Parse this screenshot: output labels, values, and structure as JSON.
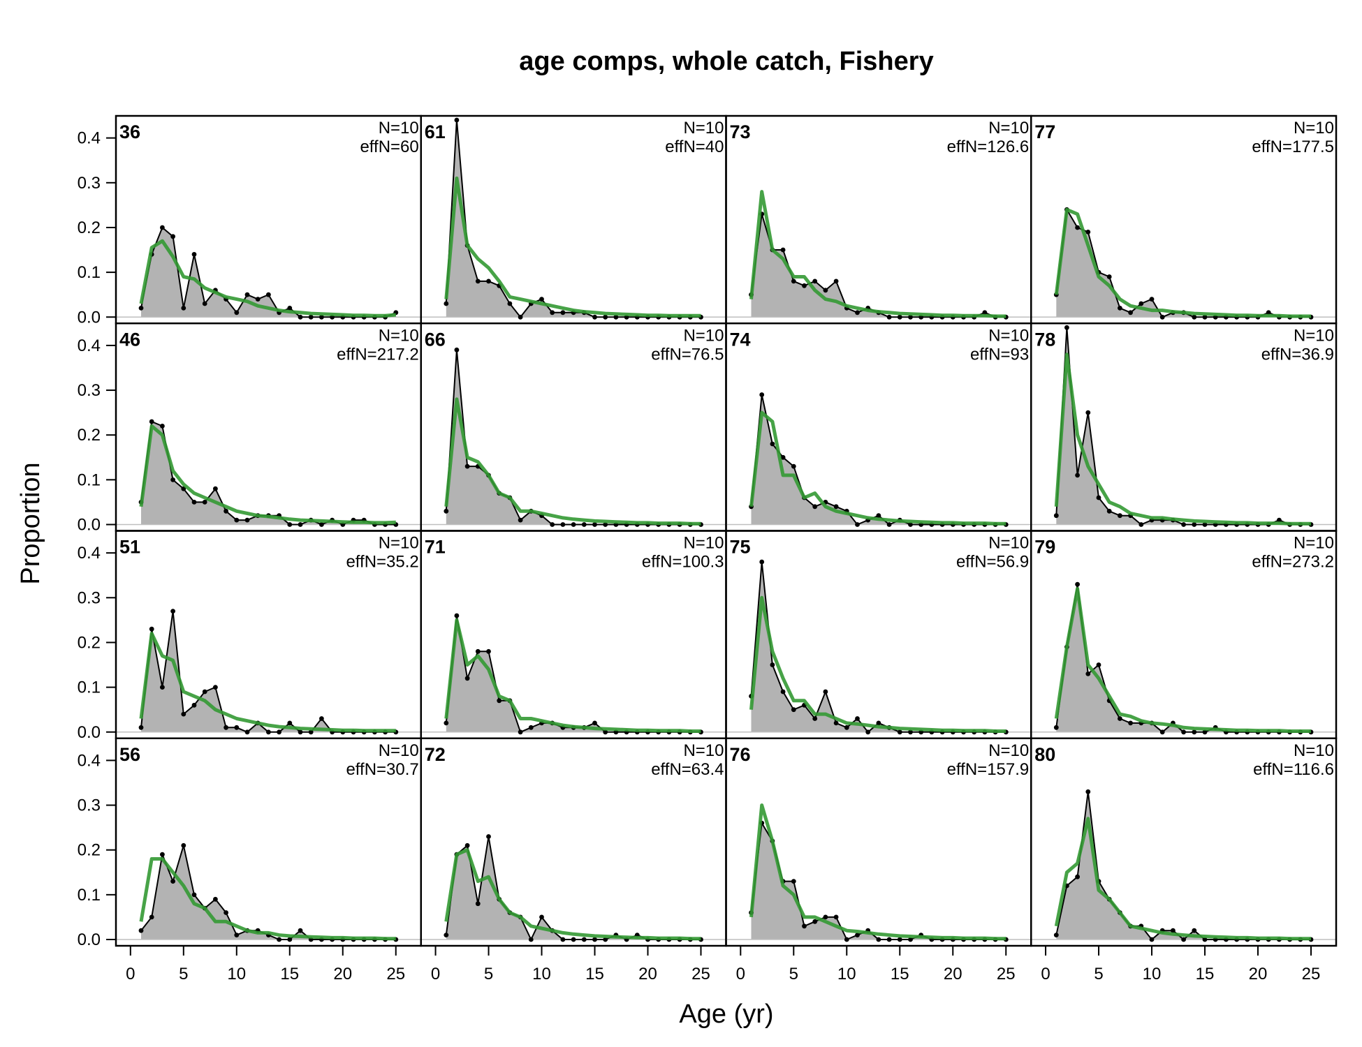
{
  "chart_data": {
    "type": "area",
    "title": "age comps, whole catch, Fishery",
    "xlabel": "Age (yr)",
    "ylabel": "Proportion",
    "xlim": [
      1,
      25
    ],
    "ylim": [
      0,
      0.44
    ],
    "xticks": [
      "0",
      "5",
      "10",
      "15",
      "20",
      "25"
    ],
    "yticks": [
      "0.0",
      "0.1",
      "0.2",
      "0.3",
      "0.4"
    ],
    "layout": "4x4 grid, column-major",
    "ages": [
      1,
      2,
      3,
      4,
      5,
      6,
      7,
      8,
      9,
      10,
      11,
      12,
      13,
      14,
      15,
      16,
      17,
      18,
      19,
      20,
      21,
      22,
      23,
      24,
      25
    ],
    "series_names": {
      "observed": "observed (grey area, black points)",
      "expected": "expected (green line)"
    },
    "panels": [
      {
        "label": "36",
        "n_text": "N=10",
        "effn_text": "effN=60",
        "observed": [
          0.02,
          0.14,
          0.2,
          0.18,
          0.02,
          0.14,
          0.03,
          0.06,
          0.04,
          0.01,
          0.05,
          0.04,
          0.05,
          0.01,
          0.02,
          0,
          0,
          0,
          0,
          0,
          0,
          0,
          0,
          0,
          0.01
        ],
        "expected": [
          0.03,
          0.155,
          0.17,
          0.135,
          0.09,
          0.085,
          0.065,
          0.055,
          0.045,
          0.04,
          0.035,
          0.025,
          0.02,
          0.015,
          0.012,
          0.01,
          0.008,
          0.007,
          0.006,
          0.005,
          0.004,
          0.004,
          0.003,
          0.003,
          0.005
        ]
      },
      {
        "label": "46",
        "n_text": "N=10",
        "effn_text": "effN=217.2",
        "observed": [
          0.05,
          0.23,
          0.22,
          0.1,
          0.08,
          0.05,
          0.05,
          0.08,
          0.03,
          0.01,
          0.01,
          0.02,
          0.02,
          0.02,
          0,
          0,
          0.01,
          0,
          0.01,
          0,
          0.01,
          0.01,
          0,
          0,
          0
        ],
        "expected": [
          0.04,
          0.22,
          0.2,
          0.12,
          0.09,
          0.07,
          0.06,
          0.05,
          0.04,
          0.03,
          0.025,
          0.02,
          0.018,
          0.015,
          0.012,
          0.01,
          0.009,
          0.008,
          0.007,
          0.006,
          0.005,
          0.005,
          0.004,
          0.004,
          0.005
        ]
      },
      {
        "label": "51",
        "n_text": "N=10",
        "effn_text": "effN=35.2",
        "observed": [
          0.01,
          0.23,
          0.1,
          0.27,
          0.04,
          0.06,
          0.09,
          0.1,
          0.01,
          0.01,
          0,
          0.02,
          0,
          0,
          0.02,
          0,
          0,
          0.03,
          0,
          0,
          0,
          0,
          0,
          0,
          0
        ],
        "expected": [
          0.03,
          0.22,
          0.17,
          0.16,
          0.09,
          0.08,
          0.07,
          0.05,
          0.04,
          0.03,
          0.025,
          0.02,
          0.015,
          0.012,
          0.01,
          0.008,
          0.007,
          0.006,
          0.005,
          0.004,
          0.004,
          0.003,
          0.003,
          0.003,
          0.003
        ]
      },
      {
        "label": "56",
        "n_text": "N=10",
        "effn_text": "effN=30.7",
        "observed": [
          0.02,
          0.05,
          0.19,
          0.13,
          0.21,
          0.1,
          0.07,
          0.09,
          0.06,
          0.01,
          0.02,
          0.02,
          0.01,
          0,
          0,
          0.02,
          0,
          0,
          0,
          0,
          0,
          0,
          0,
          0,
          0
        ],
        "expected": [
          0.04,
          0.18,
          0.18,
          0.15,
          0.12,
          0.08,
          0.07,
          0.04,
          0.04,
          0.03,
          0.02,
          0.015,
          0.015,
          0.01,
          0.008,
          0.007,
          0.006,
          0.005,
          0.004,
          0.004,
          0.003,
          0.003,
          0.003,
          0.002,
          0.002
        ]
      },
      {
        "label": "61",
        "n_text": "N=10",
        "effn_text": "effN=40",
        "observed": [
          0.03,
          0.44,
          0.16,
          0.08,
          0.08,
          0.07,
          0.03,
          0,
          0.03,
          0.04,
          0.01,
          0.01,
          0.01,
          0.01,
          0,
          0,
          0,
          0,
          0,
          0,
          0,
          0,
          0,
          0,
          0
        ],
        "expected": [
          0.04,
          0.31,
          0.16,
          0.13,
          0.11,
          0.08,
          0.045,
          0.04,
          0.035,
          0.03,
          0.025,
          0.02,
          0.015,
          0.012,
          0.01,
          0.008,
          0.007,
          0.006,
          0.005,
          0.004,
          0.004,
          0.003,
          0.003,
          0.003,
          0.003
        ]
      },
      {
        "label": "66",
        "n_text": "N=10",
        "effn_text": "effN=76.5",
        "observed": [
          0.03,
          0.39,
          0.13,
          0.13,
          0.11,
          0.07,
          0.06,
          0.01,
          0.03,
          0.02,
          0,
          0,
          0,
          0,
          0,
          0,
          0,
          0,
          0,
          0,
          0,
          0,
          0,
          0,
          0
        ],
        "expected": [
          0.04,
          0.28,
          0.15,
          0.14,
          0.11,
          0.07,
          0.06,
          0.03,
          0.03,
          0.025,
          0.02,
          0.015,
          0.012,
          0.01,
          0.008,
          0.007,
          0.006,
          0.005,
          0.004,
          0.004,
          0.003,
          0.003,
          0.003,
          0.002,
          0.002
        ]
      },
      {
        "label": "71",
        "n_text": "N=10",
        "effn_text": "effN=100.3",
        "observed": [
          0.02,
          0.26,
          0.12,
          0.18,
          0.18,
          0.07,
          0.07,
          0,
          0.01,
          0.02,
          0.02,
          0.01,
          0.01,
          0.01,
          0.02,
          0,
          0,
          0,
          0,
          0,
          0,
          0,
          0,
          0,
          0
        ],
        "expected": [
          0.03,
          0.25,
          0.15,
          0.17,
          0.14,
          0.08,
          0.07,
          0.03,
          0.03,
          0.025,
          0.02,
          0.015,
          0.012,
          0.01,
          0.008,
          0.007,
          0.006,
          0.005,
          0.004,
          0.004,
          0.003,
          0.003,
          0.003,
          0.002,
          0.002
        ]
      },
      {
        "label": "72",
        "n_text": "N=10",
        "effn_text": "effN=63.4",
        "observed": [
          0.01,
          0.19,
          0.21,
          0.08,
          0.23,
          0.09,
          0.06,
          0.05,
          0,
          0.05,
          0.02,
          0,
          0,
          0,
          0,
          0,
          0.01,
          0,
          0.01,
          0,
          0,
          0,
          0,
          0,
          0
        ],
        "expected": [
          0.04,
          0.19,
          0.2,
          0.13,
          0.14,
          0.09,
          0.06,
          0.05,
          0.03,
          0.025,
          0.02,
          0.015,
          0.012,
          0.01,
          0.008,
          0.007,
          0.006,
          0.005,
          0.004,
          0.004,
          0.003,
          0.003,
          0.003,
          0.002,
          0.002
        ]
      },
      {
        "label": "73",
        "n_text": "N=10",
        "effn_text": "effN=126.6",
        "observed": [
          0.05,
          0.23,
          0.15,
          0.15,
          0.08,
          0.07,
          0.08,
          0.06,
          0.08,
          0.02,
          0.01,
          0.02,
          0.01,
          0,
          0,
          0,
          0,
          0,
          0,
          0,
          0,
          0,
          0.01,
          0,
          0
        ],
        "expected": [
          0.04,
          0.28,
          0.15,
          0.13,
          0.09,
          0.09,
          0.06,
          0.04,
          0.035,
          0.025,
          0.02,
          0.015,
          0.012,
          0.01,
          0.008,
          0.007,
          0.006,
          0.005,
          0.004,
          0.004,
          0.003,
          0.003,
          0.003,
          0.002,
          0.002
        ]
      },
      {
        "label": "74",
        "n_text": "N=10",
        "effn_text": "effN=93",
        "observed": [
          0.04,
          0.29,
          0.18,
          0.15,
          0.13,
          0.06,
          0.04,
          0.05,
          0.04,
          0.03,
          0,
          0.01,
          0.02,
          0,
          0.01,
          0,
          0,
          0,
          0,
          0,
          0,
          0,
          0,
          0,
          0
        ],
        "expected": [
          0.04,
          0.25,
          0.23,
          0.11,
          0.11,
          0.06,
          0.07,
          0.04,
          0.03,
          0.025,
          0.02,
          0.015,
          0.012,
          0.01,
          0.008,
          0.007,
          0.006,
          0.005,
          0.004,
          0.004,
          0.003,
          0.003,
          0.003,
          0.002,
          0.002
        ]
      },
      {
        "label": "75",
        "n_text": "N=10",
        "effn_text": "effN=56.9",
        "observed": [
          0.08,
          0.38,
          0.15,
          0.09,
          0.05,
          0.06,
          0.03,
          0.09,
          0.02,
          0.01,
          0.03,
          0,
          0.02,
          0.01,
          0,
          0,
          0,
          0,
          0,
          0,
          0,
          0,
          0,
          0,
          0
        ],
        "expected": [
          0.05,
          0.3,
          0.18,
          0.12,
          0.07,
          0.07,
          0.04,
          0.04,
          0.03,
          0.02,
          0.018,
          0.015,
          0.012,
          0.01,
          0.008,
          0.007,
          0.006,
          0.005,
          0.004,
          0.004,
          0.003,
          0.003,
          0.003,
          0.002,
          0.002
        ]
      },
      {
        "label": "76",
        "n_text": "N=10",
        "effn_text": "effN=157.9",
        "observed": [
          0.06,
          0.26,
          0.22,
          0.13,
          0.13,
          0.03,
          0.04,
          0.05,
          0.05,
          0,
          0.01,
          0.02,
          0,
          0,
          0,
          0,
          0.01,
          0,
          0,
          0,
          0,
          0,
          0,
          0,
          0
        ],
        "expected": [
          0.05,
          0.3,
          0.22,
          0.12,
          0.1,
          0.05,
          0.05,
          0.04,
          0.03,
          0.02,
          0.018,
          0.015,
          0.012,
          0.01,
          0.008,
          0.007,
          0.006,
          0.005,
          0.004,
          0.004,
          0.003,
          0.003,
          0.003,
          0.002,
          0.002
        ]
      },
      {
        "label": "77",
        "n_text": "N=10",
        "effn_text": "effN=177.5",
        "observed": [
          0.05,
          0.24,
          0.2,
          0.19,
          0.1,
          0.09,
          0.02,
          0.01,
          0.03,
          0.04,
          0,
          0.01,
          0.01,
          0,
          0,
          0,
          0,
          0,
          0,
          0,
          0.01,
          0,
          0,
          0,
          0
        ],
        "expected": [
          0.05,
          0.24,
          0.23,
          0.16,
          0.09,
          0.07,
          0.04,
          0.025,
          0.02,
          0.015,
          0.015,
          0.012,
          0.01,
          0.008,
          0.007,
          0.006,
          0.005,
          0.004,
          0.004,
          0.003,
          0.003,
          0.003,
          0.002,
          0.002,
          0.002
        ]
      },
      {
        "label": "78",
        "n_text": "N=10",
        "effn_text": "effN=36.9",
        "observed": [
          0.02,
          0.44,
          0.11,
          0.25,
          0.06,
          0.03,
          0.02,
          0.02,
          0,
          0.01,
          0.01,
          0.01,
          0,
          0,
          0,
          0,
          0,
          0,
          0,
          0,
          0,
          0.01,
          0,
          0,
          0
        ],
        "expected": [
          0.04,
          0.38,
          0.2,
          0.13,
          0.09,
          0.05,
          0.04,
          0.025,
          0.02,
          0.015,
          0.015,
          0.012,
          0.01,
          0.008,
          0.007,
          0.006,
          0.005,
          0.004,
          0.004,
          0.003,
          0.003,
          0.003,
          0.002,
          0.002,
          0.002
        ]
      },
      {
        "label": "79",
        "n_text": "N=10",
        "effn_text": "effN=273.2",
        "observed": [
          0.01,
          0.19,
          0.33,
          0.13,
          0.15,
          0.07,
          0.03,
          0.02,
          0.02,
          0.02,
          0,
          0.02,
          0,
          0,
          0,
          0.01,
          0,
          0,
          0,
          0,
          0,
          0,
          0,
          0,
          0
        ],
        "expected": [
          0.03,
          0.19,
          0.32,
          0.15,
          0.12,
          0.08,
          0.04,
          0.035,
          0.025,
          0.02,
          0.018,
          0.015,
          0.01,
          0.008,
          0.007,
          0.006,
          0.005,
          0.004,
          0.004,
          0.003,
          0.003,
          0.003,
          0.002,
          0.002,
          0.002
        ]
      },
      {
        "label": "80",
        "n_text": "N=10",
        "effn_text": "effN=116.6",
        "observed": [
          0.01,
          0.12,
          0.14,
          0.33,
          0.13,
          0.09,
          0.06,
          0.03,
          0.03,
          0,
          0.02,
          0.02,
          0,
          0.02,
          0,
          0,
          0,
          0,
          0,
          0,
          0,
          0,
          0,
          0,
          0
        ],
        "expected": [
          0.03,
          0.15,
          0.17,
          0.27,
          0.11,
          0.09,
          0.06,
          0.03,
          0.025,
          0.02,
          0.015,
          0.012,
          0.01,
          0.008,
          0.007,
          0.006,
          0.005,
          0.004,
          0.004,
          0.003,
          0.003,
          0.003,
          0.002,
          0.002,
          0.002
        ]
      }
    ]
  }
}
